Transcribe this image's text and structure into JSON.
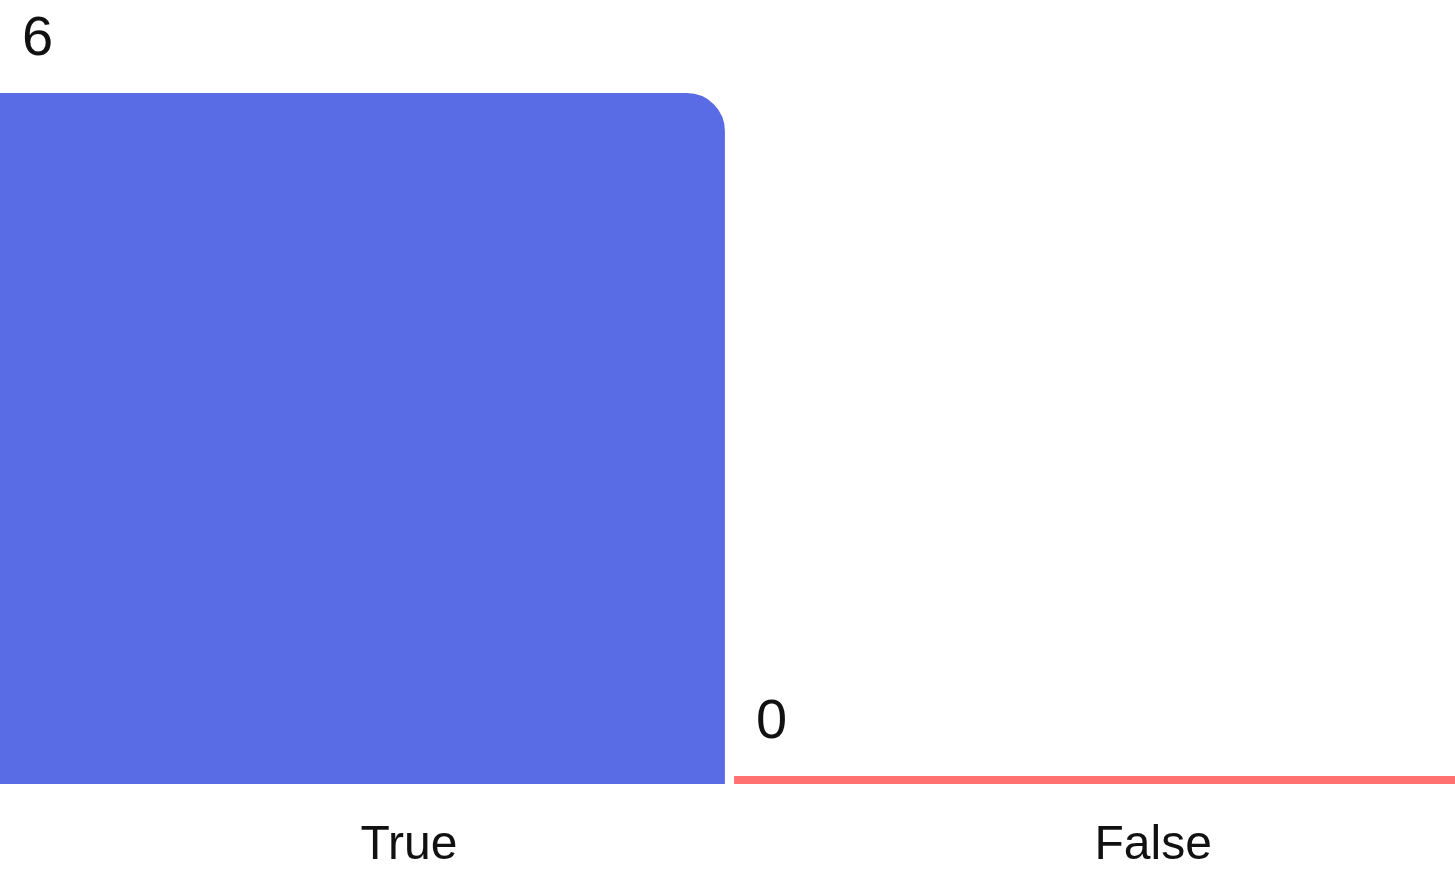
{
  "chart_data": {
    "type": "bar",
    "categories": [
      "True",
      "False"
    ],
    "values": [
      6,
      0
    ],
    "colors": [
      "#5a6be6",
      "#ff7070"
    ],
    "data_labels": true
  }
}
